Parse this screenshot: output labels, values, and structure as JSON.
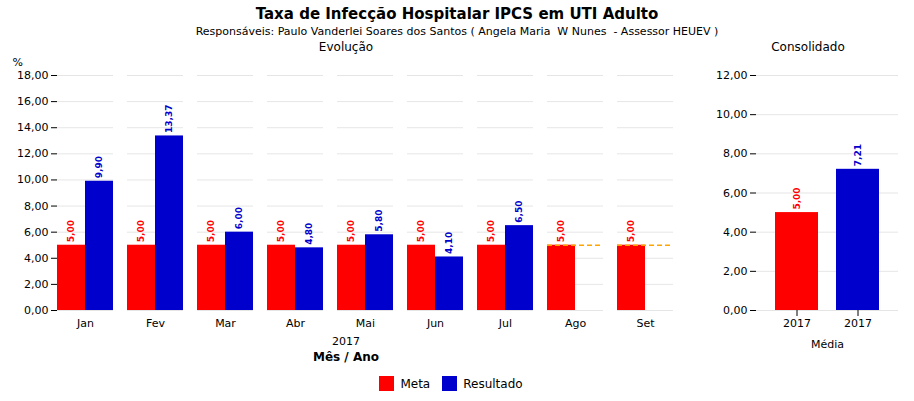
{
  "chart_data": [
    {
      "type": "bar",
      "title": "Taxa de Infecção Hospitalar IPCS em UTI Adulto",
      "subtitle": "Responsáveis: Paulo Vanderlei Soares dos Santos ( Angela Maria  W Nunes  - Assessor HEUEV )",
      "annotations": [
        "Evolução",
        "2017"
      ],
      "xlabel": "Mês / Ano",
      "ylabel": "%",
      "categories": [
        "Jan",
        "Fev",
        "Mar",
        "Abr",
        "Mai",
        "Jun",
        "Jul",
        "Ago",
        "Set"
      ],
      "series": [
        {
          "name": "Meta",
          "color": "#FF0000",
          "values": [
            5.0,
            5.0,
            5.0,
            5.0,
            5.0,
            5.0,
            5.0,
            5.0,
            5.0
          ],
          "value_labels": [
            "5,00",
            "5,00",
            "5,00",
            "5,00",
            "5,00",
            "5,00",
            "5,00",
            "5,00",
            "5,00"
          ]
        },
        {
          "name": "Resultado",
          "color": "#0000CC",
          "values": [
            9.9,
            13.37,
            6.0,
            4.8,
            5.8,
            4.1,
            6.5,
            null,
            null
          ],
          "value_labels": [
            "9,90",
            "13,37",
            "6,00",
            "4,80",
            "5,80",
            "4,10",
            "6,50",
            null,
            null
          ]
        },
        {
          "type": "line",
          "line_style": "dashed",
          "color": "#FFA500",
          "values": [
            null,
            null,
            null,
            null,
            null,
            null,
            null,
            5.0,
            5.0
          ]
        }
      ],
      "ylim": [
        0,
        18
      ],
      "yticks": [
        {
          "value": 0,
          "label": "0,00"
        },
        {
          "value": 2,
          "label": "2,00"
        },
        {
          "value": 4,
          "label": "4,00"
        },
        {
          "value": 6,
          "label": "6,00"
        },
        {
          "value": 8,
          "label": "8,00"
        },
        {
          "value": 10,
          "label": "10,00"
        },
        {
          "value": 12,
          "label": "12,00"
        },
        {
          "value": 14,
          "label": "14,00"
        },
        {
          "value": 16,
          "label": "16,00"
        },
        {
          "value": 18,
          "label": "18,00"
        }
      ],
      "grid": true,
      "data_labels": true,
      "legend": "bottom"
    },
    {
      "type": "bar",
      "title": "Consolidado",
      "xlabel": "Média",
      "categories": [
        "2017",
        "2017"
      ],
      "values": [
        5.0,
        7.21
      ],
      "value_labels": [
        "5,00",
        "7,21"
      ],
      "colors": [
        "#FF0000",
        "#0000CC"
      ],
      "ylim": [
        0,
        12
      ],
      "yticks": [
        {
          "value": 0,
          "label": "0,00"
        },
        {
          "value": 2,
          "label": "2,00"
        },
        {
          "value": 4,
          "label": "4,00"
        },
        {
          "value": 6,
          "label": "6,00"
        },
        {
          "value": 8,
          "label": "8,00"
        },
        {
          "value": 10,
          "label": "10,00"
        },
        {
          "value": 12,
          "label": "12,00"
        }
      ],
      "grid": true,
      "data_labels": true
    }
  ]
}
